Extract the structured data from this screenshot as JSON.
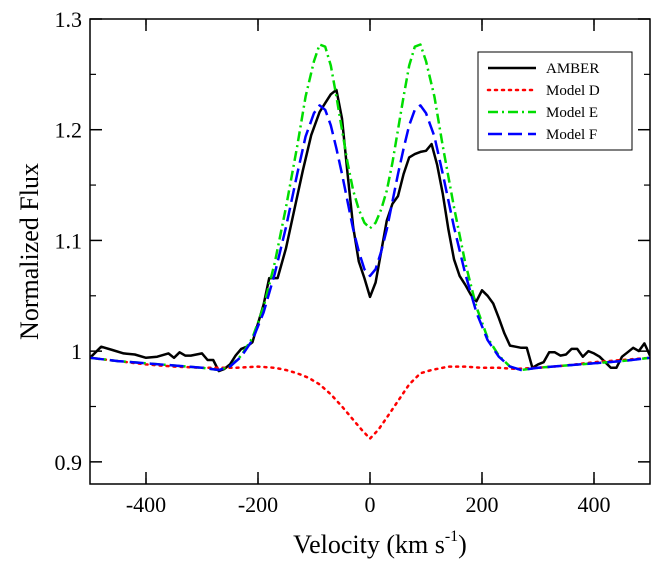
{
  "chart_data": {
    "type": "line",
    "title": "",
    "xlabel": "Velocity (km s",
    "xlabel_sup": "-1",
    "xlabel_close": ")",
    "ylabel": "Normalized Flux",
    "xlim": [
      -500,
      500
    ],
    "ylim": [
      0.88,
      1.3
    ],
    "xticks": [
      -400,
      -200,
      0,
      200,
      400
    ],
    "xtick_labels": [
      "-400",
      "-200",
      "0",
      "200",
      "400"
    ],
    "yticks": [
      0.9,
      1.0,
      1.1,
      1.2,
      1.3
    ],
    "ytick_labels": [
      "0.9",
      "1",
      "1.1",
      "1.2",
      "1.3"
    ],
    "grid": false,
    "legend_position": "top-right",
    "series": [
      {
        "name": "AMBER",
        "color": "#000000",
        "dash": "solid",
        "width": 2.5,
        "points": [
          [
            -500,
            0.994
          ],
          [
            -480,
            1.004
          ],
          [
            -460,
            1.001
          ],
          [
            -440,
            0.998
          ],
          [
            -420,
            0.997
          ],
          [
            -400,
            0.994
          ],
          [
            -380,
            0.995
          ],
          [
            -360,
            0.998
          ],
          [
            -350,
            0.994
          ],
          [
            -340,
            0.999
          ],
          [
            -330,
            0.996
          ],
          [
            -320,
            0.996
          ],
          [
            -300,
            0.998
          ],
          [
            -290,
            0.992
          ],
          [
            -280,
            0.992
          ],
          [
            -270,
            0.982
          ],
          [
            -260,
            0.984
          ],
          [
            -250,
            0.988
          ],
          [
            -240,
            0.996
          ],
          [
            -230,
            1.002
          ],
          [
            -220,
            1.004
          ],
          [
            -210,
            1.008
          ],
          [
            -200,
            1.025
          ],
          [
            -190,
            1.042
          ],
          [
            -180,
            1.066
          ],
          [
            -165,
            1.066
          ],
          [
            -150,
            1.093
          ],
          [
            -135,
            1.128
          ],
          [
            -120,
            1.163
          ],
          [
            -105,
            1.195
          ],
          [
            -90,
            1.216
          ],
          [
            -80,
            1.224
          ],
          [
            -70,
            1.232
          ],
          [
            -60,
            1.236
          ],
          [
            -50,
            1.21
          ],
          [
            -40,
            1.16
          ],
          [
            -30,
            1.112
          ],
          [
            -20,
            1.081
          ],
          [
            -10,
            1.066
          ],
          [
            0,
            1.049
          ],
          [
            10,
            1.062
          ],
          [
            20,
            1.09
          ],
          [
            30,
            1.118
          ],
          [
            40,
            1.133
          ],
          [
            50,
            1.14
          ],
          [
            60,
            1.16
          ],
          [
            70,
            1.175
          ],
          [
            80,
            1.178
          ],
          [
            90,
            1.18
          ],
          [
            100,
            1.181
          ],
          [
            110,
            1.187
          ],
          [
            120,
            1.168
          ],
          [
            130,
            1.142
          ],
          [
            140,
            1.11
          ],
          [
            150,
            1.083
          ],
          [
            160,
            1.068
          ],
          [
            170,
            1.06
          ],
          [
            180,
            1.051
          ],
          [
            190,
            1.045
          ],
          [
            200,
            1.055
          ],
          [
            210,
            1.05
          ],
          [
            220,
            1.043
          ],
          [
            230,
            1.03
          ],
          [
            240,
            1.016
          ],
          [
            250,
            1.005
          ],
          [
            260,
            1.004
          ],
          [
            270,
            1.003
          ],
          [
            280,
            1.003
          ],
          [
            290,
            0.985
          ],
          [
            300,
            0.988
          ],
          [
            310,
            0.99
          ],
          [
            320,
            0.999
          ],
          [
            330,
            0.999
          ],
          [
            340,
            0.996
          ],
          [
            350,
            0.997
          ],
          [
            360,
            1.002
          ],
          [
            370,
            1.002
          ],
          [
            380,
            0.995
          ],
          [
            390,
            1.0
          ],
          [
            400,
            0.998
          ],
          [
            410,
            0.995
          ],
          [
            420,
            0.99
          ],
          [
            430,
            0.985
          ],
          [
            440,
            0.985
          ],
          [
            450,
            0.995
          ],
          [
            460,
            0.999
          ],
          [
            470,
            1.003
          ],
          [
            480,
            1.0
          ],
          [
            490,
            1.007
          ],
          [
            500,
            0.996
          ]
        ]
      },
      {
        "name": "Model D",
        "color": "#ff0000",
        "dash": "dot",
        "width": 2.5,
        "points": [
          [
            -500,
            0.994
          ],
          [
            -450,
            0.991
          ],
          [
            -400,
            0.988
          ],
          [
            -350,
            0.986
          ],
          [
            -300,
            0.985
          ],
          [
            -260,
            0.985
          ],
          [
            -240,
            0.985
          ],
          [
            -200,
            0.986
          ],
          [
            -170,
            0.985
          ],
          [
            -150,
            0.983
          ],
          [
            -130,
            0.98
          ],
          [
            -110,
            0.976
          ],
          [
            -90,
            0.97
          ],
          [
            -70,
            0.961
          ],
          [
            -50,
            0.95
          ],
          [
            -30,
            0.938
          ],
          [
            -15,
            0.929
          ],
          [
            0,
            0.921
          ],
          [
            15,
            0.929
          ],
          [
            30,
            0.94
          ],
          [
            50,
            0.955
          ],
          [
            70,
            0.97
          ],
          [
            90,
            0.98
          ],
          [
            110,
            0.983
          ],
          [
            140,
            0.986
          ],
          [
            170,
            0.986
          ],
          [
            200,
            0.985
          ],
          [
            230,
            0.985
          ],
          [
            260,
            0.984
          ],
          [
            300,
            0.985
          ],
          [
            350,
            0.987
          ],
          [
            400,
            0.99
          ],
          [
            450,
            0.992
          ],
          [
            500,
            0.994
          ]
        ]
      },
      {
        "name": "Model E",
        "color": "#00dd00",
        "dash": "dashdot",
        "width": 2.5,
        "points": [
          [
            -500,
            0.994
          ],
          [
            -450,
            0.991
          ],
          [
            -400,
            0.989
          ],
          [
            -350,
            0.987
          ],
          [
            -300,
            0.985
          ],
          [
            -270,
            0.983
          ],
          [
            -250,
            0.986
          ],
          [
            -230,
            0.996
          ],
          [
            -210,
            1.012
          ],
          [
            -190,
            1.04
          ],
          [
            -170,
            1.08
          ],
          [
            -150,
            1.13
          ],
          [
            -130,
            1.185
          ],
          [
            -115,
            1.23
          ],
          [
            -100,
            1.262
          ],
          [
            -90,
            1.277
          ],
          [
            -80,
            1.275
          ],
          [
            -70,
            1.258
          ],
          [
            -60,
            1.23
          ],
          [
            -50,
            1.2
          ],
          [
            -40,
            1.17
          ],
          [
            -30,
            1.145
          ],
          [
            -20,
            1.128
          ],
          [
            -10,
            1.116
          ],
          [
            0,
            1.111
          ],
          [
            10,
            1.116
          ],
          [
            20,
            1.128
          ],
          [
            30,
            1.145
          ],
          [
            40,
            1.17
          ],
          [
            50,
            1.2
          ],
          [
            60,
            1.23
          ],
          [
            70,
            1.258
          ],
          [
            80,
            1.275
          ],
          [
            90,
            1.277
          ],
          [
            100,
            1.262
          ],
          [
            115,
            1.23
          ],
          [
            130,
            1.185
          ],
          [
            150,
            1.13
          ],
          [
            170,
            1.08
          ],
          [
            190,
            1.04
          ],
          [
            210,
            1.012
          ],
          [
            230,
            0.996
          ],
          [
            250,
            0.986
          ],
          [
            270,
            0.983
          ],
          [
            300,
            0.985
          ],
          [
            350,
            0.987
          ],
          [
            400,
            0.989
          ],
          [
            450,
            0.991
          ],
          [
            500,
            0.994
          ]
        ]
      },
      {
        "name": "Model F",
        "color": "#0000ff",
        "dash": "dash",
        "width": 2.5,
        "points": [
          [
            -500,
            0.994
          ],
          [
            -450,
            0.991
          ],
          [
            -400,
            0.989
          ],
          [
            -350,
            0.987
          ],
          [
            -300,
            0.985
          ],
          [
            -270,
            0.983
          ],
          [
            -250,
            0.986
          ],
          [
            -230,
            0.995
          ],
          [
            -210,
            1.01
          ],
          [
            -190,
            1.035
          ],
          [
            -170,
            1.07
          ],
          [
            -150,
            1.112
          ],
          [
            -130,
            1.16
          ],
          [
            -115,
            1.194
          ],
          [
            -100,
            1.215
          ],
          [
            -90,
            1.222
          ],
          [
            -80,
            1.218
          ],
          [
            -70,
            1.204
          ],
          [
            -60,
            1.183
          ],
          [
            -50,
            1.16
          ],
          [
            -40,
            1.135
          ],
          [
            -30,
            1.11
          ],
          [
            -20,
            1.09
          ],
          [
            -10,
            1.074
          ],
          [
            0,
            1.068
          ],
          [
            10,
            1.074
          ],
          [
            20,
            1.09
          ],
          [
            30,
            1.11
          ],
          [
            40,
            1.135
          ],
          [
            50,
            1.16
          ],
          [
            60,
            1.183
          ],
          [
            70,
            1.204
          ],
          [
            80,
            1.218
          ],
          [
            90,
            1.222
          ],
          [
            100,
            1.215
          ],
          [
            115,
            1.194
          ],
          [
            130,
            1.16
          ],
          [
            150,
            1.112
          ],
          [
            170,
            1.07
          ],
          [
            190,
            1.035
          ],
          [
            210,
            1.01
          ],
          [
            230,
            0.995
          ],
          [
            250,
            0.986
          ],
          [
            270,
            0.983
          ],
          [
            300,
            0.985
          ],
          [
            350,
            0.987
          ],
          [
            400,
            0.989
          ],
          [
            450,
            0.991
          ],
          [
            500,
            0.994
          ]
        ]
      }
    ]
  }
}
